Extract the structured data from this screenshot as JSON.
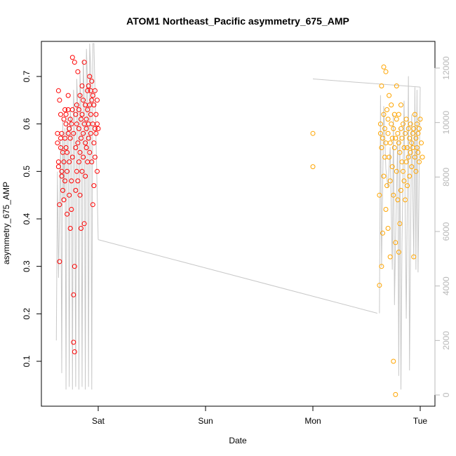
{
  "chart_data": {
    "type": "scatter",
    "title": "ATOM1 Northeast_Pacific asymmetry_675_AMP",
    "xlabel": "Date",
    "ylabel": "asymmetry_675_AMP",
    "x_unit": "days since Sat 00:00",
    "xlim": [
      -0.45,
      3.15
    ],
    "ylim": [
      0.025,
      0.755
    ],
    "x_ticks": [
      {
        "value": 0,
        "label": "Sat"
      },
      {
        "value": 1,
        "label": "Sun"
      },
      {
        "value": 2,
        "label": "Mon"
      },
      {
        "value": 3,
        "label": "Tue"
      }
    ],
    "y_ticks": [
      0.1,
      0.2,
      0.3,
      0.4,
      0.5,
      0.6,
      0.7
    ],
    "y2_ticks": [
      0,
      2000,
      4000,
      6000,
      8000,
      10000,
      12000
    ],
    "y2lim": [
      -250,
      12900
    ],
    "colors": {
      "series1": "#ff0000",
      "series2": "#ffa500",
      "secondary_line": "#c8c8c8",
      "secondary_axis": "#b8b8b8"
    },
    "series": [
      {
        "marker": "circle-open",
        "color": "#ff0000",
        "x_range": [
          -0.39,
          0.0
        ],
        "values_summary": "dense cluster mostly 0.45-0.70, outliers near 0.12-0.14",
        "points": [
          [
            -0.38,
            0.58
          ],
          [
            -0.38,
            0.56
          ],
          [
            -0.37,
            0.51
          ],
          [
            -0.37,
            0.52
          ],
          [
            -0.37,
            0.67
          ],
          [
            -0.36,
            0.65
          ],
          [
            -0.36,
            0.43
          ],
          [
            -0.36,
            0.31
          ],
          [
            -0.35,
            0.62
          ],
          [
            -0.35,
            0.57
          ],
          [
            -0.35,
            0.55
          ],
          [
            -0.34,
            0.5
          ],
          [
            -0.34,
            0.49
          ],
          [
            -0.34,
            0.58
          ],
          [
            -0.33,
            0.54
          ],
          [
            -0.33,
            0.46
          ],
          [
            -0.32,
            0.61
          ],
          [
            -0.32,
            0.52
          ],
          [
            -0.32,
            0.44
          ],
          [
            -0.31,
            0.63
          ],
          [
            -0.31,
            0.57
          ],
          [
            -0.31,
            0.48
          ],
          [
            -0.3,
            0.55
          ],
          [
            -0.3,
            0.62
          ],
          [
            -0.3,
            0.6
          ],
          [
            -0.29,
            0.54
          ],
          [
            -0.29,
            0.41
          ],
          [
            -0.29,
            0.5
          ],
          [
            -0.28,
            0.63
          ],
          [
            -0.28,
            0.66
          ],
          [
            -0.28,
            0.58
          ],
          [
            -0.27,
            0.59
          ],
          [
            -0.27,
            0.52
          ],
          [
            -0.27,
            0.45
          ],
          [
            -0.26,
            0.61
          ],
          [
            -0.26,
            0.38
          ],
          [
            -0.26,
            0.57
          ],
          [
            -0.25,
            0.6
          ],
          [
            -0.25,
            0.42
          ],
          [
            -0.25,
            0.48
          ],
          [
            -0.24,
            0.74
          ],
          [
            -0.24,
            0.63
          ],
          [
            -0.24,
            0.53
          ],
          [
            -0.23,
            0.14
          ],
          [
            -0.23,
            0.24
          ],
          [
            -0.23,
            0.58
          ],
          [
            -0.22,
            0.12
          ],
          [
            -0.22,
            0.3
          ],
          [
            -0.22,
            0.73
          ],
          [
            -0.21,
            0.62
          ],
          [
            -0.21,
            0.55
          ],
          [
            -0.21,
            0.46
          ],
          [
            -0.2,
            0.6
          ],
          [
            -0.2,
            0.64
          ],
          [
            -0.2,
            0.5
          ],
          [
            -0.19,
            0.56
          ],
          [
            -0.19,
            0.48
          ],
          [
            -0.19,
            0.71
          ],
          [
            -0.18,
            0.59
          ],
          [
            -0.18,
            0.52
          ],
          [
            -0.18,
            0.63
          ],
          [
            -0.17,
            0.66
          ],
          [
            -0.17,
            0.54
          ],
          [
            -0.17,
            0.45
          ],
          [
            -0.16,
            0.61
          ],
          [
            -0.16,
            0.38
          ],
          [
            -0.16,
            0.57
          ],
          [
            -0.15,
            0.62
          ],
          [
            -0.15,
            0.5
          ],
          [
            -0.15,
            0.68
          ],
          [
            -0.14,
            0.58
          ],
          [
            -0.14,
            0.53
          ],
          [
            -0.14,
            0.65
          ],
          [
            -0.13,
            0.39
          ],
          [
            -0.13,
            0.6
          ],
          [
            -0.13,
            0.73
          ],
          [
            -0.12,
            0.56
          ],
          [
            -0.12,
            0.49
          ],
          [
            -0.12,
            0.64
          ],
          [
            -0.11,
            0.55
          ],
          [
            -0.11,
            0.61
          ],
          [
            -0.11,
            0.59
          ],
          [
            -0.1,
            0.67
          ],
          [
            -0.1,
            0.52
          ],
          [
            -0.1,
            0.63
          ],
          [
            -0.09,
            0.68
          ],
          [
            -0.09,
            0.57
          ],
          [
            -0.09,
            0.6
          ],
          [
            -0.08,
            0.64
          ],
          [
            -0.08,
            0.54
          ],
          [
            -0.08,
            0.7
          ],
          [
            -0.07,
            0.62
          ],
          [
            -0.07,
            0.58
          ],
          [
            -0.07,
            0.67
          ],
          [
            -0.06,
            0.65
          ],
          [
            -0.06,
            0.52
          ],
          [
            -0.06,
            0.69
          ],
          [
            -0.05,
            0.6
          ],
          [
            -0.05,
            0.43
          ],
          [
            -0.05,
            0.66
          ],
          [
            -0.04,
            0.56
          ],
          [
            -0.04,
            0.64
          ],
          [
            -0.04,
            0.47
          ],
          [
            -0.03,
            0.59
          ],
          [
            -0.03,
            0.67
          ],
          [
            -0.03,
            0.53
          ],
          [
            -0.02,
            0.62
          ],
          [
            -0.02,
            0.58
          ],
          [
            -0.01,
            0.5
          ],
          [
            -0.01,
            0.65
          ],
          [
            -0.01,
            0.6
          ],
          [
            0.0,
            0.59
          ]
        ]
      },
      {
        "marker": "circle-open",
        "color": "#ffa500",
        "x_range": [
          2.0,
          3.02
        ],
        "values_summary": "two isolated points near Mon (0.51, 0.58); dense cluster 0.62-3.02 mostly 0.45-0.65, outliers 0.03-0.10",
        "points": [
          [
            2.0,
            0.58
          ],
          [
            2.0,
            0.51
          ],
          [
            2.62,
            0.45
          ],
          [
            2.62,
            0.26
          ],
          [
            2.63,
            0.6
          ],
          [
            2.63,
            0.58
          ],
          [
            2.64,
            0.3
          ],
          [
            2.64,
            0.55
          ],
          [
            2.64,
            0.68
          ],
          [
            2.65,
            0.37
          ],
          [
            2.65,
            0.57
          ],
          [
            2.66,
            0.62
          ],
          [
            2.66,
            0.49
          ],
          [
            2.66,
            0.72
          ],
          [
            2.67,
            0.53
          ],
          [
            2.67,
            0.59
          ],
          [
            2.68,
            0.71
          ],
          [
            2.68,
            0.42
          ],
          [
            2.68,
            0.56
          ],
          [
            2.69,
            0.63
          ],
          [
            2.69,
            0.47
          ],
          [
            2.7,
            0.38
          ],
          [
            2.7,
            0.58
          ],
          [
            2.7,
            0.61
          ],
          [
            2.71,
            0.53
          ],
          [
            2.71,
            0.66
          ],
          [
            2.72,
            0.32
          ],
          [
            2.72,
            0.56
          ],
          [
            2.72,
            0.48
          ],
          [
            2.73,
            0.6
          ],
          [
            2.73,
            0.64
          ],
          [
            2.74,
            0.51
          ],
          [
            2.74,
            0.57
          ],
          [
            2.75,
            0.45
          ],
          [
            2.75,
            0.59
          ],
          [
            2.75,
            0.1
          ],
          [
            2.76,
            0.55
          ],
          [
            2.76,
            0.62
          ],
          [
            2.77,
            0.03
          ],
          [
            2.77,
            0.35
          ],
          [
            2.77,
            0.57
          ],
          [
            2.78,
            0.61
          ],
          [
            2.78,
            0.5
          ],
          [
            2.78,
            0.68
          ],
          [
            2.79,
            0.44
          ],
          [
            2.79,
            0.58
          ],
          [
            2.8,
            0.33
          ],
          [
            2.8,
            0.56
          ],
          [
            2.8,
            0.62
          ],
          [
            2.81,
            0.39
          ],
          [
            2.81,
            0.54
          ],
          [
            2.82,
            0.46
          ],
          [
            2.82,
            0.59
          ],
          [
            2.82,
            0.64
          ],
          [
            2.83,
            0.52
          ],
          [
            2.83,
            0.57
          ],
          [
            2.84,
            0.5
          ],
          [
            2.84,
            0.6
          ],
          [
            2.85,
            0.48
          ],
          [
            2.85,
            0.55
          ],
          [
            2.86,
            0.58
          ],
          [
            2.86,
            0.44
          ],
          [
            2.87,
            0.52
          ],
          [
            2.87,
            0.61
          ],
          [
            2.88,
            0.55
          ],
          [
            2.88,
            0.47
          ],
          [
            2.89,
            0.59
          ],
          [
            2.89,
            0.53
          ],
          [
            2.9,
            0.57
          ],
          [
            2.9,
            0.49
          ],
          [
            2.91,
            0.6
          ],
          [
            2.91,
            0.54
          ],
          [
            2.92,
            0.56
          ],
          [
            2.92,
            0.51
          ],
          [
            2.93,
            0.58
          ],
          [
            2.93,
            0.55
          ],
          [
            2.94,
            0.32
          ],
          [
            2.94,
            0.59
          ],
          [
            2.95,
            0.53
          ],
          [
            2.95,
            0.62
          ],
          [
            2.96,
            0.57
          ],
          [
            2.96,
            0.5
          ],
          [
            2.97,
            0.6
          ],
          [
            2.97,
            0.55
          ],
          [
            2.98,
            0.58
          ],
          [
            2.98,
            0.54
          ],
          [
            2.99,
            0.52
          ],
          [
            2.99,
            0.59
          ],
          [
            3.0,
            0.61
          ],
          [
            3.01,
            0.56
          ],
          [
            3.02,
            0.53
          ]
        ]
      },
      {
        "type": "line",
        "axis": "right",
        "color": "#c8c8c8",
        "points": [
          [
            -0.39,
            2000
          ],
          [
            -0.38,
            8200
          ],
          [
            -0.37,
            4300
          ],
          [
            -0.35,
            9400
          ],
          [
            -0.34,
            800
          ],
          [
            -0.33,
            10100
          ],
          [
            -0.32,
            7200
          ],
          [
            -0.31,
            9800
          ],
          [
            -0.3,
            200
          ],
          [
            -0.29,
            10200
          ],
          [
            -0.28,
            9500
          ],
          [
            -0.27,
            300
          ],
          [
            -0.26,
            10500
          ],
          [
            -0.25,
            9800
          ],
          [
            -0.24,
            200
          ],
          [
            -0.23,
            11200
          ],
          [
            -0.22,
            10000
          ],
          [
            -0.21,
            300
          ],
          [
            -0.2,
            11600
          ],
          [
            -0.19,
            10600
          ],
          [
            -0.18,
            200
          ],
          [
            -0.17,
            11900
          ],
          [
            -0.16,
            10500
          ],
          [
            -0.15,
            300
          ],
          [
            -0.14,
            12300
          ],
          [
            -0.13,
            11000
          ],
          [
            -0.12,
            200
          ],
          [
            -0.11,
            12700
          ],
          [
            -0.1,
            11500
          ],
          [
            -0.09,
            300
          ],
          [
            -0.08,
            12900
          ],
          [
            -0.07,
            12000
          ],
          [
            -0.06,
            200
          ],
          [
            -0.05,
            12900
          ],
          [
            -0.04,
            12900
          ],
          [
            0.0,
            5700
          ],
          [
            2.62,
            3000
          ],
          [
            2.63,
            11000
          ],
          [
            2.64,
            4700
          ],
          [
            2.66,
            10600
          ],
          [
            2.68,
            8300
          ],
          [
            2.7,
            7600
          ],
          [
            2.72,
            9100
          ],
          [
            2.74,
            4600
          ],
          [
            2.75,
            10300
          ],
          [
            2.76,
            3300
          ],
          [
            2.77,
            5600
          ],
          [
            2.79,
            9500
          ],
          [
            2.8,
            700
          ],
          [
            2.81,
            9800
          ],
          [
            2.82,
            200
          ],
          [
            2.83,
            5600
          ],
          [
            2.85,
            10800
          ],
          [
            2.87,
            2800
          ],
          [
            2.89,
            11700
          ],
          [
            2.9,
            900
          ],
          [
            2.92,
            10300
          ],
          [
            2.94,
            5000
          ],
          [
            2.95,
            11300
          ],
          [
            2.96,
            4600
          ],
          [
            2.97,
            11200
          ],
          [
            2.98,
            4500
          ],
          [
            3.0,
            11300
          ]
        ],
        "connect_gap_from": [
          0.0,
          5700
        ],
        "connect_gap_to": [
          2.0,
          11600
        ],
        "gap_line_note": "line descends from Sat to just before Tue, then continues across"
      }
    ]
  }
}
